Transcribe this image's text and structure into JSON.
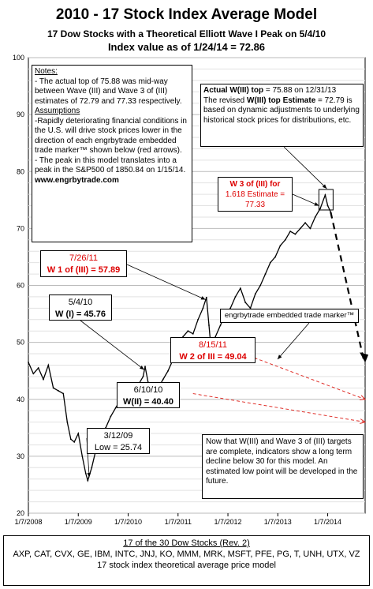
{
  "header": {
    "title": "2010 - 17 Stock Index Average Model",
    "subtitle": "17 Dow Stocks with a Theoretical Elliott Wave I Peak on 5/4/10",
    "index_line": "Index value as  of 1/24/14  = 72.86"
  },
  "notes": {
    "heading": "Notes:",
    "text1": "- The actual top of 75.88 was mid-way between Wave (III) and Wave 3 of (III) estimates of 72.79 and 77.33 respectively.",
    "assumptions_heading": "Assumptions",
    "text2": "-Rapidly deteriorating financial conditions in the U.S. will drive stock prices lower in the direction of each engrbytrade embedded trade marker™ shown below (red arrows).",
    "text3": "- The peak in this model translates into a peak in the S&P500 of 1850.84 on 1/15/14.",
    "site": "www.engrbytrade.com"
  },
  "actual_top": {
    "line1_bold": "Actual W(III) top",
    "line1_rest": " = 75.88 on 12/31/13",
    "line2_pre": "The revised ",
    "line2_bold": "W(III) top Estimate",
    "line2_rest": " = 72.79 is based on dynamic adjustments to underlying historical stock prices for distributions, etc."
  },
  "annotations": {
    "w3": {
      "line1": "W 3 of (III) for",
      "line2": "1.618 Estimate =",
      "line3": "77.33"
    },
    "w1": {
      "date": "7/26/11",
      "label": "W 1 of (III) = 57.89"
    },
    "wI": {
      "date": "5/4/10",
      "label": "W (I) = 45.76"
    },
    "w2": {
      "date": "8/15/11",
      "label": "W 2 of III = 49.04"
    },
    "wII": {
      "date": "6/10/10",
      "label": "W(II) = 40.40"
    },
    "low": {
      "date": "3/12/09",
      "label": "Low = 25.74"
    },
    "marker": "engrbytrade embedded trade marker™",
    "future": "Now that W(III) and Wave 3 of (III) targets are complete, indicators show a long term decline below 30 for this model.  An estimated low point will be developed in the future."
  },
  "footer": {
    "heading": "17 of the 30 Dow Stocks (Rev. 2)",
    "tickers": "AXP, CAT,  CVX, GE, IBM, INTC, JNJ, KO, MMM, MRK, MSFT, PFE, PG, T, UNH, UTX,  VZ",
    "caption": "17 stock index theoretical average price model"
  },
  "chart_data": {
    "type": "line",
    "ylim": [
      20,
      100
    ],
    "yticks": [
      "20",
      "30",
      "40",
      "50",
      "60",
      "70",
      "80",
      "90",
      "100"
    ],
    "xticks": [
      "1/7/2008",
      "1/7/2009",
      "1/7/2010",
      "1/7/2011",
      "1/7/2012",
      "1/7/2013",
      "1/7/2014"
    ],
    "xlim": [
      2008.0,
      2014.75
    ],
    "grid": true,
    "series": [
      {
        "x": [
          2008.0,
          2008.1,
          2008.2,
          2008.3,
          2008.4,
          2008.5,
          2008.6,
          2008.7,
          2008.78,
          2008.85,
          2008.92,
          2009.0,
          2009.08,
          2009.15,
          2009.19,
          2009.27,
          2009.35,
          2009.45,
          2009.55,
          2009.65,
          2009.75,
          2009.85,
          2009.95,
          2010.05,
          2010.1,
          2010.2,
          2010.3,
          2010.34,
          2010.4,
          2010.44,
          2010.5,
          2010.6,
          2010.7,
          2010.8,
          2010.9,
          2011.0,
          2011.1,
          2011.2,
          2011.3,
          2011.4,
          2011.5,
          2011.57,
          2011.62,
          2011.66,
          2011.75,
          2011.85,
          2011.95,
          2012.05,
          2012.15,
          2012.25,
          2012.35,
          2012.45,
          2012.55,
          2012.65,
          2012.75,
          2012.85,
          2012.95,
          2013.05,
          2013.15,
          2013.25,
          2013.35,
          2013.45,
          2013.55,
          2013.65,
          2013.75,
          2013.85,
          2013.95,
          2014.0,
          2014.06
        ],
        "y": [
          46.5,
          44.5,
          45.5,
          43.5,
          46,
          42,
          41.5,
          41,
          36,
          33,
          32.5,
          34,
          30,
          27,
          25.74,
          28,
          31,
          33,
          35,
          37,
          38.5,
          40,
          41,
          42.5,
          41.5,
          42.5,
          44,
          45.76,
          43,
          41.5,
          40.4,
          42,
          43.5,
          45,
          47,
          49,
          51,
          52,
          51.5,
          54,
          56,
          57.89,
          53,
          49.04,
          51,
          53,
          55,
          56,
          58,
          59.5,
          57,
          56,
          58.5,
          60,
          62,
          64,
          65,
          67,
          68,
          69.5,
          69,
          70,
          71,
          70,
          72,
          73.5,
          75.88,
          74,
          72.86
        ]
      },
      {
        "name": "projection",
        "x": [
          2014.06,
          2014.72
        ],
        "y": [
          72.86,
          47
        ]
      }
    ],
    "trade_markers": [
      {
        "x": [
          2011.3,
          2014.75
        ],
        "y": [
          41,
          36
        ]
      },
      {
        "x": [
          2011.7,
          2014.75
        ],
        "y": [
          50,
          40
        ]
      }
    ]
  }
}
